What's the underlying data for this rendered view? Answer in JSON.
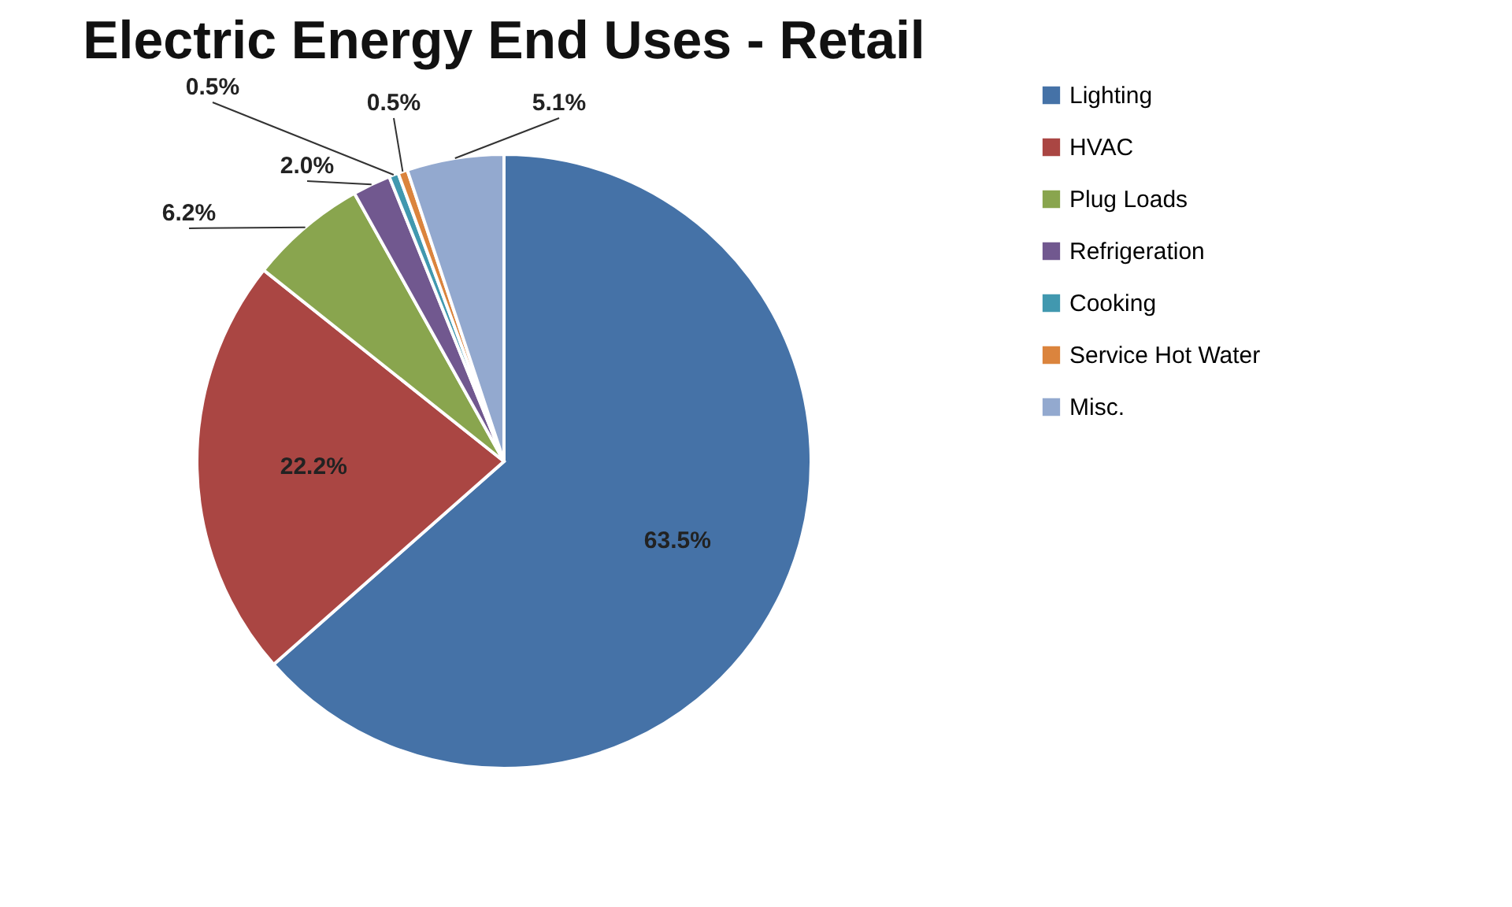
{
  "chart_data": {
    "type": "pie",
    "title": "Electric Energy End Uses - Retail",
    "categories": [
      "Lighting",
      "HVAC",
      "Plug Loads",
      "Refrigeration",
      "Cooking",
      "Service Hot Water",
      "Misc."
    ],
    "values": [
      63.5,
      22.2,
      6.2,
      2.0,
      0.5,
      0.5,
      5.1
    ],
    "value_labels": [
      "63.5%",
      "22.2%",
      "6.2%",
      "2.0%",
      "0.5%",
      "0.5%",
      "5.1%"
    ],
    "colors": [
      "#4572a7",
      "#aa4643",
      "#89a54e",
      "#71588f",
      "#4198af",
      "#db843d",
      "#93a9cf"
    ],
    "legend": "right"
  }
}
